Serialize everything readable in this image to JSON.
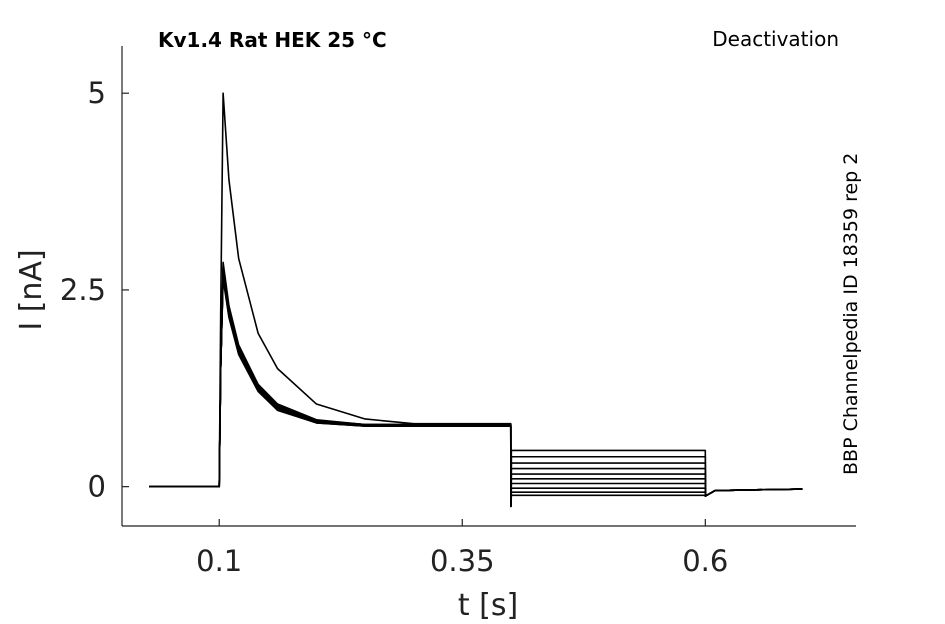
{
  "chart_data": {
    "type": "line",
    "title": "Kv1.4  Rat  HEK  25 °C",
    "protocol": "Deactivation",
    "side_label": "BBP Channelpedia ID 18359 rep 2",
    "xlabel": "t [s]",
    "ylabel": "I [nA]",
    "xlim": [
      -0.0,
      0.755
    ],
    "ylim": [
      -0.5,
      5.6
    ],
    "xticks": [
      0.1,
      0.35,
      0.6
    ],
    "xtick_labels": [
      "0.1",
      "0.35",
      "0.6"
    ],
    "yticks": [
      0,
      2.5,
      5
    ],
    "ytick_labels": [
      "0",
      "2.5",
      "5"
    ],
    "grid": false,
    "legend": "none",
    "color": "#000000",
    "series": [
      {
        "x": [
          0.028,
          0.07,
          0.1,
          0.1015,
          0.104,
          0.11,
          0.12,
          0.14,
          0.16,
          0.2,
          0.25,
          0.3,
          0.3999,
          0.4,
          0.4005,
          0.41,
          0.6,
          0.6001,
          0.61,
          0.7
        ],
        "y": [
          0.0,
          0.0,
          0.0,
          2.2,
          5.0,
          3.9,
          2.9,
          1.95,
          1.5,
          1.05,
          0.86,
          0.8,
          0.8,
          -0.25,
          0.46,
          0.46,
          0.46,
          -0.12,
          -0.05,
          -0.03
        ]
      },
      {
        "x": [
          0.028,
          0.07,
          0.1,
          0.1015,
          0.104,
          0.11,
          0.12,
          0.14,
          0.16,
          0.2,
          0.25,
          0.3,
          0.3999,
          0.4,
          0.4005,
          0.41,
          0.6,
          0.6001,
          0.61,
          0.7
        ],
        "y": [
          0.0,
          0.0,
          0.0,
          1.5,
          2.85,
          2.3,
          1.8,
          1.3,
          1.05,
          0.85,
          0.79,
          0.79,
          0.79,
          -0.25,
          0.38,
          0.38,
          0.38,
          -0.12,
          -0.05,
          -0.03
        ]
      },
      {
        "x": [
          0.028,
          0.07,
          0.1,
          0.1015,
          0.104,
          0.11,
          0.12,
          0.14,
          0.16,
          0.2,
          0.25,
          0.3,
          0.3999,
          0.4,
          0.4005,
          0.41,
          0.6,
          0.6001,
          0.61,
          0.7
        ],
        "y": [
          0.0,
          0.0,
          0.0,
          1.5,
          2.8,
          2.27,
          1.78,
          1.28,
          1.04,
          0.84,
          0.79,
          0.79,
          0.79,
          -0.25,
          0.3,
          0.3,
          0.3,
          -0.12,
          -0.05,
          -0.03
        ]
      },
      {
        "x": [
          0.028,
          0.07,
          0.1,
          0.1015,
          0.104,
          0.11,
          0.12,
          0.14,
          0.16,
          0.2,
          0.25,
          0.3,
          0.3999,
          0.4,
          0.4005,
          0.41,
          0.6,
          0.6001,
          0.61,
          0.7
        ],
        "y": [
          0.0,
          0.0,
          0.0,
          1.5,
          2.78,
          2.25,
          1.76,
          1.27,
          1.03,
          0.84,
          0.79,
          0.79,
          0.79,
          -0.25,
          0.23,
          0.23,
          0.23,
          -0.12,
          -0.05,
          -0.03
        ]
      },
      {
        "x": [
          0.028,
          0.07,
          0.1,
          0.1015,
          0.104,
          0.11,
          0.12,
          0.14,
          0.16,
          0.2,
          0.25,
          0.3,
          0.3999,
          0.4,
          0.4005,
          0.41,
          0.6,
          0.6001,
          0.61,
          0.7
        ],
        "y": [
          0.0,
          0.0,
          0.0,
          1.5,
          2.75,
          2.23,
          1.74,
          1.26,
          1.02,
          0.83,
          0.78,
          0.78,
          0.78,
          -0.25,
          0.16,
          0.16,
          0.16,
          -0.12,
          -0.05,
          -0.03
        ]
      },
      {
        "x": [
          0.028,
          0.07,
          0.1,
          0.1015,
          0.104,
          0.11,
          0.12,
          0.14,
          0.16,
          0.2,
          0.25,
          0.3,
          0.3999,
          0.4,
          0.4005,
          0.41,
          0.6,
          0.6001,
          0.61,
          0.7
        ],
        "y": [
          0.0,
          0.0,
          0.0,
          1.5,
          2.73,
          2.21,
          1.73,
          1.25,
          1.01,
          0.83,
          0.78,
          0.78,
          0.78,
          -0.25,
          0.1,
          0.1,
          0.1,
          -0.12,
          -0.05,
          -0.03
        ]
      },
      {
        "x": [
          0.028,
          0.07,
          0.1,
          0.1015,
          0.104,
          0.11,
          0.12,
          0.14,
          0.16,
          0.2,
          0.25,
          0.3,
          0.3999,
          0.4,
          0.4005,
          0.41,
          0.6,
          0.6001,
          0.61,
          0.7
        ],
        "y": [
          0.0,
          0.0,
          0.0,
          1.5,
          2.7,
          2.2,
          1.72,
          1.24,
          1.0,
          0.82,
          0.78,
          0.78,
          0.78,
          -0.25,
          0.04,
          0.04,
          0.04,
          -0.12,
          -0.05,
          -0.03
        ]
      },
      {
        "x": [
          0.028,
          0.07,
          0.1,
          0.1015,
          0.104,
          0.11,
          0.12,
          0.14,
          0.16,
          0.2,
          0.25,
          0.3,
          0.3999,
          0.4,
          0.4005,
          0.41,
          0.6,
          0.6001,
          0.61,
          0.7
        ],
        "y": [
          0.0,
          0.0,
          0.0,
          1.5,
          2.68,
          2.18,
          1.7,
          1.23,
          0.99,
          0.82,
          0.77,
          0.77,
          0.77,
          -0.25,
          -0.02,
          -0.02,
          -0.02,
          -0.12,
          -0.05,
          -0.03
        ]
      },
      {
        "x": [
          0.028,
          0.07,
          0.1,
          0.1015,
          0.104,
          0.11,
          0.12,
          0.14,
          0.16,
          0.2,
          0.25,
          0.3,
          0.3999,
          0.4,
          0.4005,
          0.41,
          0.6,
          0.6001,
          0.61,
          0.7
        ],
        "y": [
          0.0,
          0.0,
          0.0,
          1.5,
          2.66,
          2.17,
          1.69,
          1.22,
          0.98,
          0.81,
          0.77,
          0.77,
          0.77,
          -0.25,
          -0.07,
          -0.07,
          -0.07,
          -0.12,
          -0.05,
          -0.03
        ]
      },
      {
        "x": [
          0.028,
          0.07,
          0.1,
          0.1015,
          0.104,
          0.11,
          0.12,
          0.14,
          0.16,
          0.2,
          0.25,
          0.3,
          0.3999,
          0.4,
          0.4005,
          0.41,
          0.6,
          0.6001,
          0.61,
          0.7
        ],
        "y": [
          0.0,
          0.0,
          0.0,
          1.5,
          2.64,
          2.15,
          1.68,
          1.21,
          0.97,
          0.81,
          0.77,
          0.77,
          0.77,
          -0.25,
          -0.11,
          -0.11,
          -0.11,
          -0.12,
          -0.05,
          -0.03
        ]
      }
    ]
  }
}
